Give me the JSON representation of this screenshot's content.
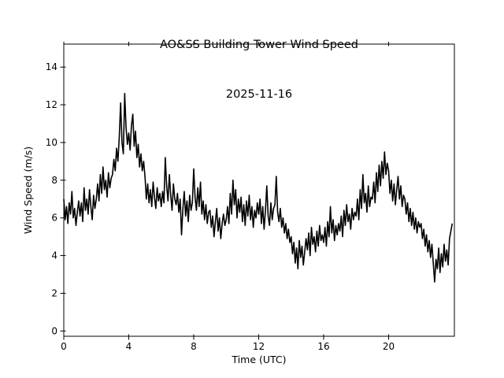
{
  "figure": {
    "background": "#ffffff",
    "foreground": "#000000"
  },
  "chart_data": {
    "type": "line",
    "title": "AO&SS Building Tower Wind Speed",
    "subtitle": "2025-11-16",
    "xlabel": "Time (UTC)",
    "ylabel": "Wind Speed (m/s)",
    "xlim": [
      0,
      24.05
    ],
    "ylim": [
      -0.28,
      15.22
    ],
    "xticks": [
      0,
      4,
      8,
      12,
      16,
      20
    ],
    "yticks": [
      0,
      2,
      4,
      6,
      8,
      10,
      12,
      14
    ],
    "grid": false,
    "legend": "none",
    "line_color": "#000000",
    "line_width": 1.6,
    "x_unit": "hours",
    "x_start": 0,
    "x_step": 0.0833333,
    "values": [
      7.0,
      5.9,
      6.6,
      5.7,
      6.8,
      6.2,
      7.4,
      6.0,
      6.5,
      5.6,
      6.3,
      6.9,
      6.1,
      6.8,
      5.8,
      7.6,
      6.4,
      7.0,
      6.2,
      7.5,
      6.6,
      5.9,
      7.2,
      6.5,
      7.0,
      7.8,
      6.9,
      8.3,
      7.3,
      8.7,
      7.5,
      8.0,
      7.1,
      8.4,
      7.6,
      8.1,
      8.3,
      9.1,
      8.5,
      9.7,
      9.0,
      10.3,
      12.1,
      10.0,
      9.4,
      12.6,
      10.8,
      9.9,
      10.5,
      9.6,
      10.9,
      11.5,
      9.8,
      10.6,
      9.2,
      9.9,
      8.7,
      9.4,
      8.5,
      9.0,
      8.2,
      7.0,
      7.8,
      6.8,
      7.5,
      6.6,
      7.9,
      7.1,
      6.5,
      7.6,
      6.9,
      7.3,
      6.6,
      7.4,
      6.8,
      9.2,
      7.7,
      6.9,
      8.3,
      7.2,
      6.4,
      7.8,
      7.0,
      6.7,
      7.3,
      6.3,
      7.0,
      5.1,
      6.5,
      7.4,
      6.1,
      6.9,
      5.8,
      7.2,
      6.4,
      6.8,
      8.6,
      7.1,
      6.4,
      7.6,
      6.6,
      7.9,
      6.2,
      6.9,
      5.9,
      6.7,
      5.7,
      6.3,
      6.4,
      5.5,
      6.1,
      5.0,
      5.8,
      6.5,
      5.3,
      6.0,
      4.9,
      5.7,
      6.2,
      5.6,
      5.9,
      6.6,
      5.7,
      7.3,
      6.2,
      8.0,
      6.7,
      7.5,
      6.0,
      7.0,
      6.3,
      7.1,
      5.8,
      6.7,
      5.6,
      6.9,
      6.1,
      7.2,
      5.9,
      6.6,
      5.5,
      6.4,
      6.0,
      6.8,
      6.2,
      7.0,
      5.7,
      6.6,
      5.4,
      6.4,
      7.7,
      6.1,
      5.6,
      6.8,
      5.9,
      6.5,
      6.7,
      8.2,
      6.3,
      5.8,
      6.5,
      5.5,
      6.0,
      5.2,
      5.7,
      4.9,
      5.4,
      4.7,
      5.0,
      4.1,
      4.7,
      3.6,
      4.4,
      3.3,
      4.8,
      3.9,
      4.5,
      3.5,
      4.2,
      4.9,
      4.3,
      5.2,
      4.0,
      5.5,
      4.6,
      5.0,
      4.2,
      5.3,
      4.5,
      5.6,
      4.8,
      5.1,
      4.7,
      5.5,
      4.5,
      5.8,
      5.0,
      6.6,
      5.2,
      5.9,
      4.8,
      5.6,
      5.1,
      5.7,
      5.3,
      6.1,
      5.0,
      6.4,
      5.6,
      6.7,
      5.8,
      6.2,
      5.4,
      6.5,
      5.9,
      6.3,
      6.1,
      7.0,
      5.9,
      7.5,
      6.5,
      8.3,
      6.8,
      7.3,
      6.3,
      7.7,
      6.6,
      7.1,
      7.0,
      7.9,
      6.8,
      8.4,
      7.4,
      8.8,
      7.7,
      9.0,
      8.1,
      9.5,
      8.3,
      8.9,
      8.5,
      7.3,
      8.0,
      6.9,
      7.8,
      6.7,
      7.5,
      8.2,
      7.0,
      7.7,
      6.6,
      7.2,
      7.0,
      6.2,
      6.8,
      5.8,
      6.5,
      5.6,
      6.3,
      5.4,
      6.0,
      5.2,
      5.8,
      5.5,
      5.7,
      4.9,
      5.4,
      4.5,
      5.1,
      4.2,
      4.8,
      3.9,
      4.6,
      3.6,
      2.6,
      3.8,
      3.3,
      4.4,
      3.1,
      4.1,
      3.4,
      4.6,
      3.7,
      4.3,
      3.5,
      4.9,
      5.3,
      5.7
    ]
  }
}
